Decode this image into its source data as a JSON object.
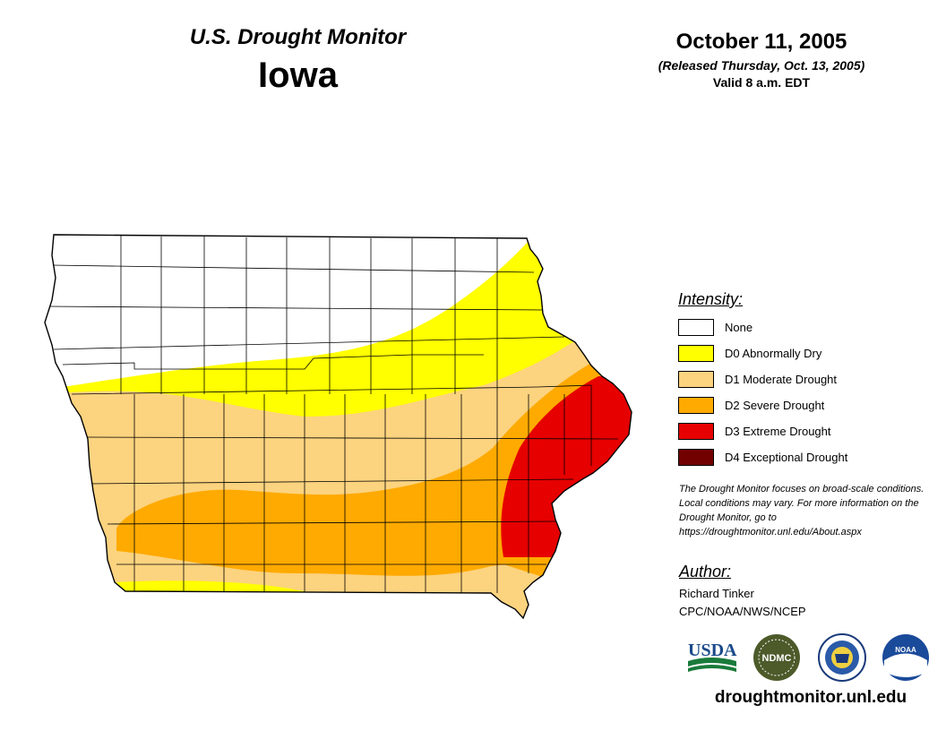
{
  "header": {
    "monitor_title": "U.S. Drought Monitor",
    "state": "Iowa",
    "date": "October 11, 2005",
    "released": "(Released Thursday, Oct. 13, 2005)",
    "valid": "Valid 8 a.m. EDT"
  },
  "legend": {
    "heading": "Intensity:",
    "items": [
      {
        "label": "None",
        "color": "#ffffff"
      },
      {
        "label": "D0 Abnormally Dry",
        "color": "#ffff00"
      },
      {
        "label": "D1 Moderate Drought",
        "color": "#fcd37f"
      },
      {
        "label": "D2 Severe Drought",
        "color": "#ffaa00"
      },
      {
        "label": "D3 Extreme Drought",
        "color": "#e60000"
      },
      {
        "label": "D4 Exceptional Drought",
        "color": "#730000"
      }
    ]
  },
  "note": "The Drought Monitor focuses on broad-scale conditions. Local conditions may vary. For more information on the Drought Monitor, go to https://droughtmonitor.unl.edu/About.aspx",
  "author": {
    "heading": "Author:",
    "name": "Richard Tinker",
    "org": "CPC/NOAA/NWS/NCEP"
  },
  "logos": {
    "usda": "USDA",
    "ndmc": "NDMC",
    "noaa": "NOAA"
  },
  "website": "droughtmonitor.unl.edu"
}
